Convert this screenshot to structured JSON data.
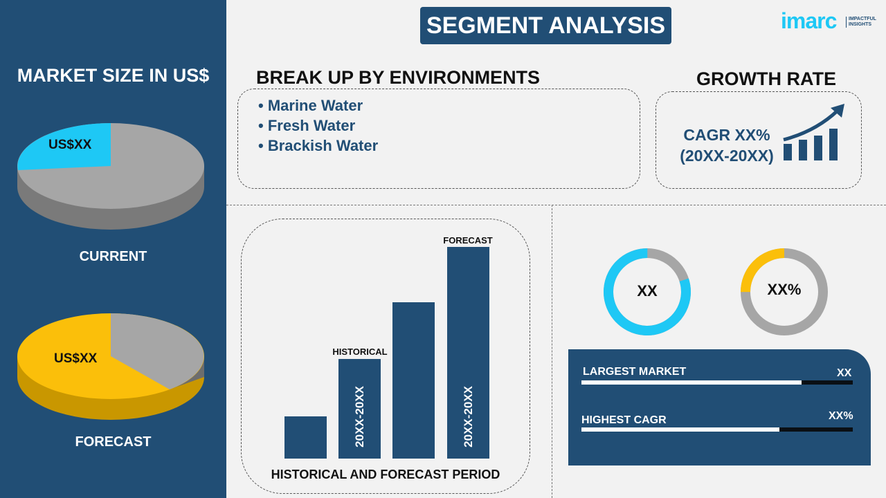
{
  "header": {
    "title": "SEGMENT ANALYSIS",
    "logo": "imarc",
    "logo_tagline": "IMPACTFUL INSIGHTS"
  },
  "left": {
    "title": "MARKET SIZE IN US$",
    "current_label": "CURRENT",
    "current_value": "US$XX",
    "forecast_label": "FORECAST",
    "forecast_value": "US$XX",
    "current_share": 0.25,
    "forecast_share": 0.6
  },
  "breakup": {
    "title": "BREAK UP BY ENVIRONMENTS",
    "items": [
      "• Marine Water",
      "• Fresh Water",
      "• Brackish Water"
    ]
  },
  "growth": {
    "title": "GROWTH RATE",
    "cagr": "CAGR XX%",
    "period": "(20XX-20XX)"
  },
  "chart_data": {
    "type": "bar",
    "values": [
      20,
      47,
      74,
      100
    ],
    "historical_label": "HISTORICAL",
    "forecast_label": "FORECAST",
    "historical_period": "20XX-20XX",
    "forecast_period": "20XX-20XX",
    "xlabel": "HISTORICAL AND FORECAST PERIOD"
  },
  "donuts": [
    {
      "label": "XX",
      "fill": 0.8,
      "color": "#1ec8f5"
    },
    {
      "label": "XX%",
      "fill": 0.25,
      "color": "#fbbf0a"
    }
  ],
  "stats": [
    {
      "label": "LARGEST MARKET",
      "value": "XX",
      "fill": 0.81
    },
    {
      "label": "HIGHEST CAGR",
      "value": "XX%",
      "fill": 0.73
    }
  ],
  "colors": {
    "navy": "#214e75",
    "cyan": "#1ec8f5",
    "yellow": "#fbbf0a",
    "gray": "#a6a6a6"
  }
}
